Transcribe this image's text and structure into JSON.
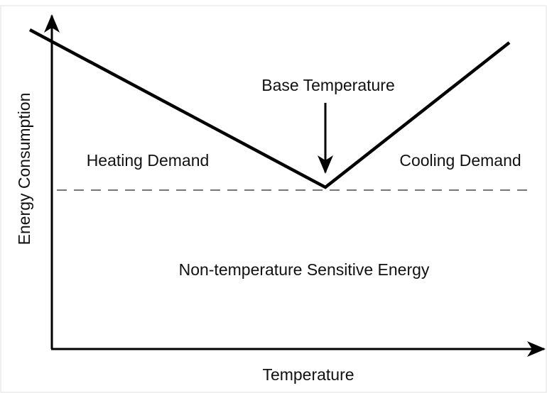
{
  "axes": {
    "x_label": "Temperature",
    "y_label": "Energy Consumption"
  },
  "annotations": {
    "base_temperature": "Base Temperature",
    "heating_demand": "Heating Demand",
    "cooling_demand": "Cooling Demand",
    "base_load": "Non-temperature Sensitive Energy"
  }
}
